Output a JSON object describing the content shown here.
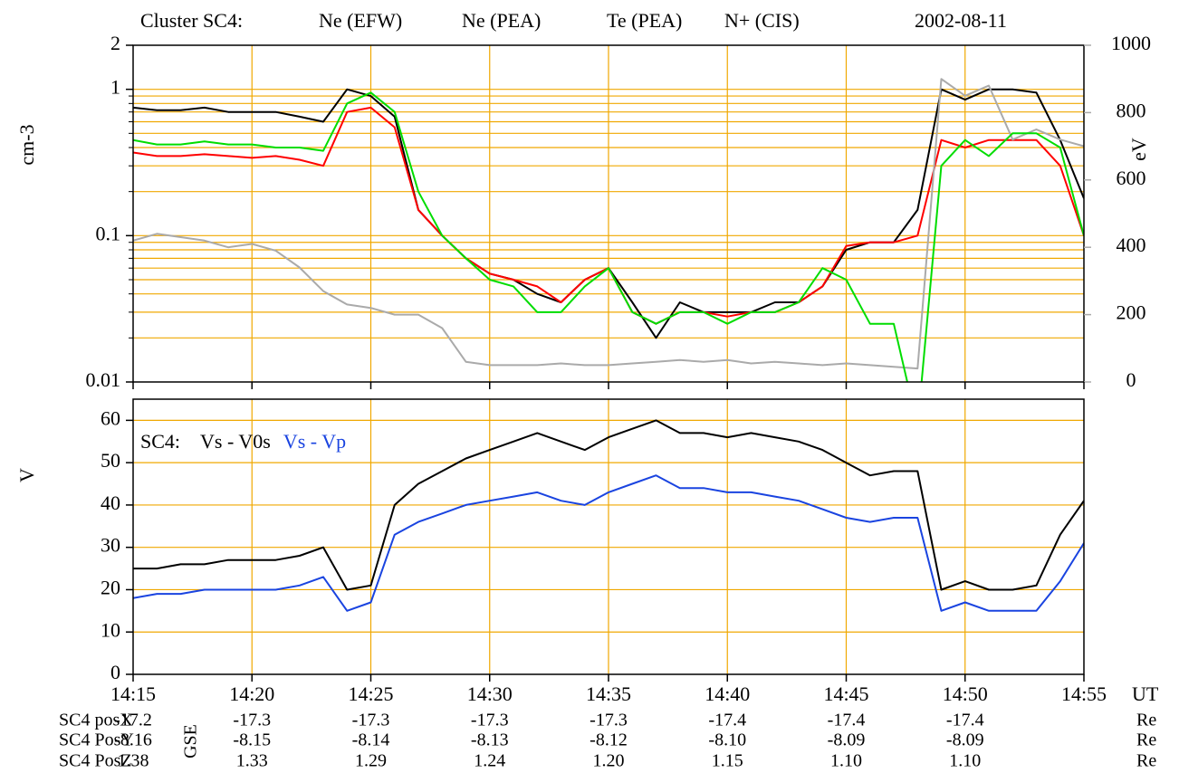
{
  "title": "Cluster SC4:",
  "date": "2002-08-11",
  "chart_data": [
    {
      "type": "line",
      "ylabel": "cm-3",
      "y2label": "eV",
      "log_y": true,
      "grid": true,
      "x": [
        0,
        1,
        2,
        3,
        4,
        5,
        6,
        7,
        8,
        9,
        10,
        11,
        12,
        13,
        14,
        15,
        16,
        17,
        18,
        19,
        20,
        21,
        22,
        23,
        24,
        25,
        26,
        27,
        28,
        29,
        30,
        31,
        32,
        33,
        34,
        35,
        36,
        37,
        38,
        39,
        40
      ],
      "xlim": [
        0,
        40
      ],
      "xticks": [
        0,
        5,
        10,
        15,
        20,
        25,
        30,
        35,
        40
      ],
      "ylim": [
        0.01,
        2
      ],
      "yticks": [
        0.01,
        0.1,
        1,
        2
      ],
      "yminor": [
        0.02,
        0.03,
        0.04,
        0.05,
        0.06,
        0.07,
        0.08,
        0.09,
        0.2,
        0.3,
        0.4,
        0.5,
        0.6,
        0.7,
        0.8,
        0.9
      ],
      "y2lim": [
        0,
        1000
      ],
      "y2ticks": [
        0,
        200,
        400,
        600,
        800,
        1000
      ],
      "y2color": "#aaaaaa",
      "series": [
        {
          "name": "Ne (EFW)",
          "color": "#000000",
          "values": [
            0.75,
            0.72,
            0.72,
            0.75,
            0.7,
            0.7,
            0.7,
            0.65,
            0.6,
            1.0,
            0.9,
            0.65,
            0.15,
            0.1,
            0.07,
            0.055,
            0.05,
            0.04,
            0.035,
            0.05,
            0.06,
            0.035,
            0.02,
            0.035,
            0.03,
            0.03,
            0.03,
            0.035,
            0.035,
            0.045,
            0.08,
            0.09,
            0.09,
            0.15,
            1.0,
            0.85,
            1.0,
            1.0,
            0.95,
            0.45,
            0.18
          ]
        },
        {
          "name": "Ne (PEA)",
          "color": "#ff0000",
          "values": [
            0.37,
            0.35,
            0.35,
            0.36,
            0.35,
            0.34,
            0.35,
            0.33,
            0.3,
            0.7,
            0.75,
            0.55,
            0.15,
            0.1,
            0.07,
            0.055,
            0.05,
            0.045,
            0.035,
            0.05,
            0.06,
            0.03,
            0.025,
            0.03,
            0.03,
            0.028,
            0.03,
            0.03,
            0.035,
            0.045,
            0.085,
            0.09,
            0.09,
            0.1,
            0.45,
            0.4,
            0.45,
            0.45,
            0.45,
            0.3,
            0.1
          ]
        },
        {
          "name": "Te (PEA)",
          "color": "#aaaaaa",
          "axis": "y2",
          "values": [
            420,
            440,
            430,
            420,
            400,
            410,
            390,
            340,
            270,
            230,
            220,
            200,
            200,
            160,
            60,
            50,
            50,
            50,
            55,
            50,
            50,
            55,
            60,
            65,
            60,
            65,
            55,
            60,
            55,
            50,
            55,
            50,
            45,
            40,
            900,
            850,
            880,
            720,
            750,
            720,
            700
          ]
        },
        {
          "name": "N+ (CIS)",
          "color": "#00dd00",
          "values": [
            0.45,
            0.42,
            0.42,
            0.44,
            0.42,
            0.42,
            0.4,
            0.4,
            0.38,
            0.8,
            0.95,
            0.7,
            0.2,
            0.1,
            0.07,
            0.05,
            0.045,
            0.03,
            0.03,
            0.045,
            0.06,
            0.03,
            0.025,
            0.03,
            0.03,
            0.025,
            0.03,
            0.03,
            0.035,
            0.06,
            0.05,
            0.025,
            0.025,
            0.005,
            0.3,
            0.45,
            0.35,
            0.5,
            0.5,
            0.4,
            0.1
          ]
        }
      ]
    },
    {
      "type": "line",
      "ylabel": "V",
      "annotation": "SC4:",
      "grid": true,
      "x": [
        0,
        1,
        2,
        3,
        4,
        5,
        6,
        7,
        8,
        9,
        10,
        11,
        12,
        13,
        14,
        15,
        16,
        17,
        18,
        19,
        20,
        21,
        22,
        23,
        24,
        25,
        26,
        27,
        28,
        29,
        30,
        31,
        32,
        33,
        34,
        35,
        36,
        37,
        38,
        39,
        40
      ],
      "xlim": [
        0,
        40
      ],
      "xticks": [
        {
          "value": 0,
          "label": "14:15"
        },
        {
          "value": 5,
          "label": "14:20"
        },
        {
          "value": 10,
          "label": "14:25"
        },
        {
          "value": 15,
          "label": "14:30"
        },
        {
          "value": 20,
          "label": "14:35"
        },
        {
          "value": 25,
          "label": "14:40"
        },
        {
          "value": 30,
          "label": "14:45"
        },
        {
          "value": 35,
          "label": "14:50"
        },
        {
          "value": 40,
          "label": "14:55"
        }
      ],
      "xunit": "UT",
      "ylim": [
        0,
        65
      ],
      "yticks": [
        0,
        10,
        20,
        30,
        40,
        50,
        60
      ],
      "series": [
        {
          "name": "Vs - V0s",
          "color": "#000000",
          "values": [
            25,
            25,
            26,
            26,
            27,
            27,
            27,
            28,
            30,
            20,
            21,
            40,
            45,
            48,
            51,
            53,
            55,
            57,
            55,
            53,
            56,
            58,
            60,
            57,
            57,
            56,
            57,
            56,
            55,
            53,
            50,
            47,
            48,
            48,
            20,
            22,
            20,
            20,
            21,
            33,
            41
          ]
        },
        {
          "name": "Vs - Vp",
          "color": "#1a44e0",
          "values": [
            18,
            19,
            19,
            20,
            20,
            20,
            20,
            21,
            23,
            15,
            17,
            33,
            36,
            38,
            40,
            41,
            42,
            43,
            41,
            40,
            43,
            45,
            47,
            44,
            44,
            43,
            43,
            42,
            41,
            39,
            37,
            36,
            37,
            37,
            15,
            17,
            15,
            15,
            15,
            22,
            31
          ]
        }
      ]
    }
  ],
  "table": {
    "frame": "GSE",
    "unit": "Re",
    "rows": [
      {
        "label": "SC4 posX",
        "values": [
          "-17.2",
          "-17.3",
          "-17.3",
          "-17.3",
          "-17.3",
          "-17.4",
          "-17.4",
          "-17.4"
        ]
      },
      {
        "label": "SC4 PosY",
        "values": [
          "-8.16",
          "-8.15",
          "-8.14",
          "-8.13",
          "-8.12",
          "-8.10",
          "-8.09",
          "-8.09"
        ]
      },
      {
        "label": "SC4 PosZ",
        "values": [
          "1.38",
          "1.33",
          "1.29",
          "1.24",
          "1.20",
          "1.15",
          "1.10",
          "1.10"
        ]
      }
    ]
  }
}
